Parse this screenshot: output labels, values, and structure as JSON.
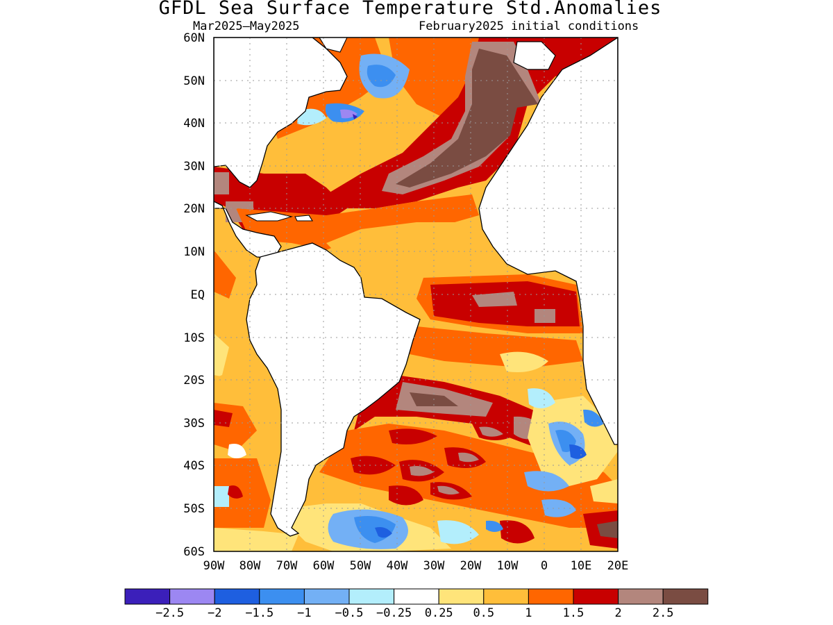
{
  "title": "GFDL Sea Surface Temperature Std.Anomalies",
  "subtitle_left": "Mar2025—May2025",
  "subtitle_right": "February2025 initial conditions",
  "lat_labels": [
    "60N",
    "50N",
    "40N",
    "30N",
    "20N",
    "10N",
    "EQ",
    "10S",
    "20S",
    "30S",
    "40S",
    "50S",
    "60S"
  ],
  "lon_labels": [
    "90W",
    "80W",
    "70W",
    "60W",
    "50W",
    "40W",
    "30W",
    "20W",
    "10W",
    "0",
    "10E",
    "20E"
  ],
  "colorbar": {
    "colors": [
      "#3b1fba",
      "#9c87f2",
      "#1e5fe0",
      "#3c8ff0",
      "#73b0f5",
      "#b3eefc",
      "#ffffff",
      "#ffe47a",
      "#ffbe3a",
      "#ff6600",
      "#c80000",
      "#b3867d",
      "#7a4c42"
    ],
    "labels": [
      "−2.5",
      "−2",
      "−1.5",
      "−1",
      "−0.5",
      "−0.25",
      "0.25",
      "0.5",
      "1",
      "1.5",
      "2",
      "2.5"
    ]
  },
  "colors": {
    "land": "#ffffff",
    "coast": "#000000",
    "grid": "#999999"
  }
}
